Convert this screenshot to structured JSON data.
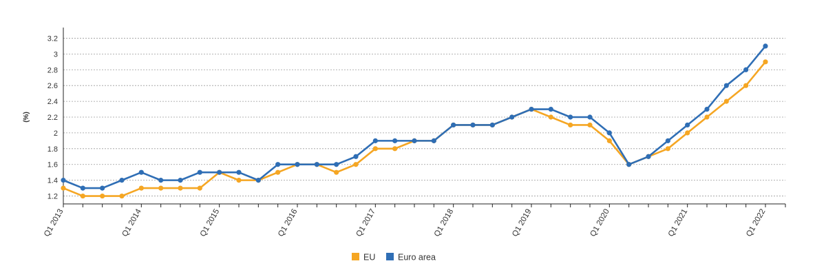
{
  "chart_data": {
    "type": "line",
    "title": "",
    "xlabel": "",
    "ylabel": "(%)",
    "ylim": [
      1.1,
      3.3
    ],
    "yticks": [
      1.2,
      1.4,
      1.6,
      1.8,
      2,
      2.2,
      2.4,
      2.6,
      2.8,
      3,
      3.2
    ],
    "grid": true,
    "legend_position": "bottom-center",
    "x": [
      "Q1 2013",
      "Q2 2013",
      "Q3 2013",
      "Q4 2013",
      "Q1 2014",
      "Q2 2014",
      "Q3 2014",
      "Q4 2014",
      "Q1 2015",
      "Q2 2015",
      "Q3 2015",
      "Q4 2015",
      "Q1 2016",
      "Q2 2016",
      "Q3 2016",
      "Q4 2016",
      "Q1 2017",
      "Q2 2017",
      "Q3 2017",
      "Q4 2017",
      "Q1 2018",
      "Q2 2018",
      "Q3 2018",
      "Q4 2018",
      "Q1 2019",
      "Q2 2019",
      "Q3 2019",
      "Q4 2019",
      "Q1 2020",
      "Q2 2020",
      "Q3 2020",
      "Q4 2020",
      "Q1 2021",
      "Q2 2021",
      "Q3 2021",
      "Q4 2021",
      "Q1 2022"
    ],
    "x_tick_labels": [
      "Q1 2013",
      "Q1 2014",
      "Q1 2015",
      "Q1 2016",
      "Q1 2017",
      "Q1 2018",
      "Q1 2019",
      "Q1 2020",
      "Q1 2021",
      "Q1 2022"
    ],
    "series": [
      {
        "name": "EU",
        "color": "#f5a623",
        "values": [
          1.3,
          1.2,
          1.2,
          1.2,
          1.3,
          1.3,
          1.3,
          1.3,
          1.5,
          1.4,
          1.4,
          1.5,
          1.6,
          1.6,
          1.5,
          1.6,
          1.8,
          1.8,
          1.9,
          1.9,
          2.1,
          2.1,
          2.1,
          2.2,
          2.3,
          2.2,
          2.1,
          2.1,
          1.9,
          1.6,
          1.7,
          1.8,
          2.0,
          2.2,
          2.4,
          2.6,
          2.9
        ]
      },
      {
        "name": "Euro area",
        "color": "#2f6eb5",
        "values": [
          1.4,
          1.3,
          1.3,
          1.4,
          1.5,
          1.4,
          1.4,
          1.5,
          1.5,
          1.5,
          1.4,
          1.6,
          1.6,
          1.6,
          1.6,
          1.7,
          1.9,
          1.9,
          1.9,
          1.9,
          2.1,
          2.1,
          2.1,
          2.2,
          2.3,
          2.3,
          2.2,
          2.2,
          2.0,
          1.6,
          1.7,
          1.9,
          2.1,
          2.3,
          2.6,
          2.8,
          3.1
        ]
      }
    ]
  }
}
